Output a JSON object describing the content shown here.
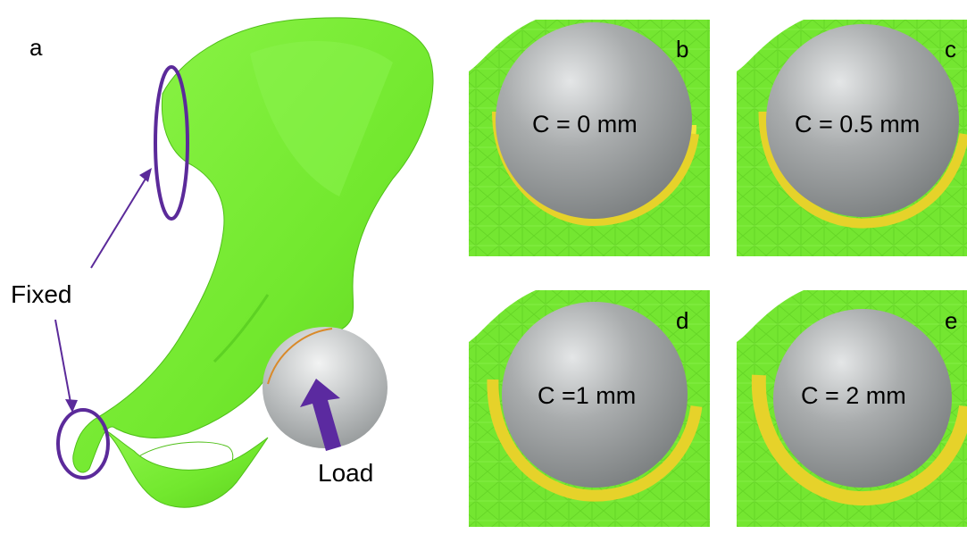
{
  "panel_a": {
    "letter": "a",
    "fixed_label": "Fixed",
    "load_label": "Load"
  },
  "panels": [
    {
      "letter": "b",
      "caption": "C = 0 mm"
    },
    {
      "letter": "c",
      "caption": "C = 0.5 mm"
    },
    {
      "letter": "d",
      "caption": "C =1 mm"
    },
    {
      "letter": "e",
      "caption": "C = 2 mm"
    }
  ],
  "colors": {
    "bone": "#7ef03a",
    "bone_dark": "#4fc81c",
    "sphere": "#a9acad",
    "liner": "#f2e63a",
    "annotation": "#5b2a9a"
  }
}
